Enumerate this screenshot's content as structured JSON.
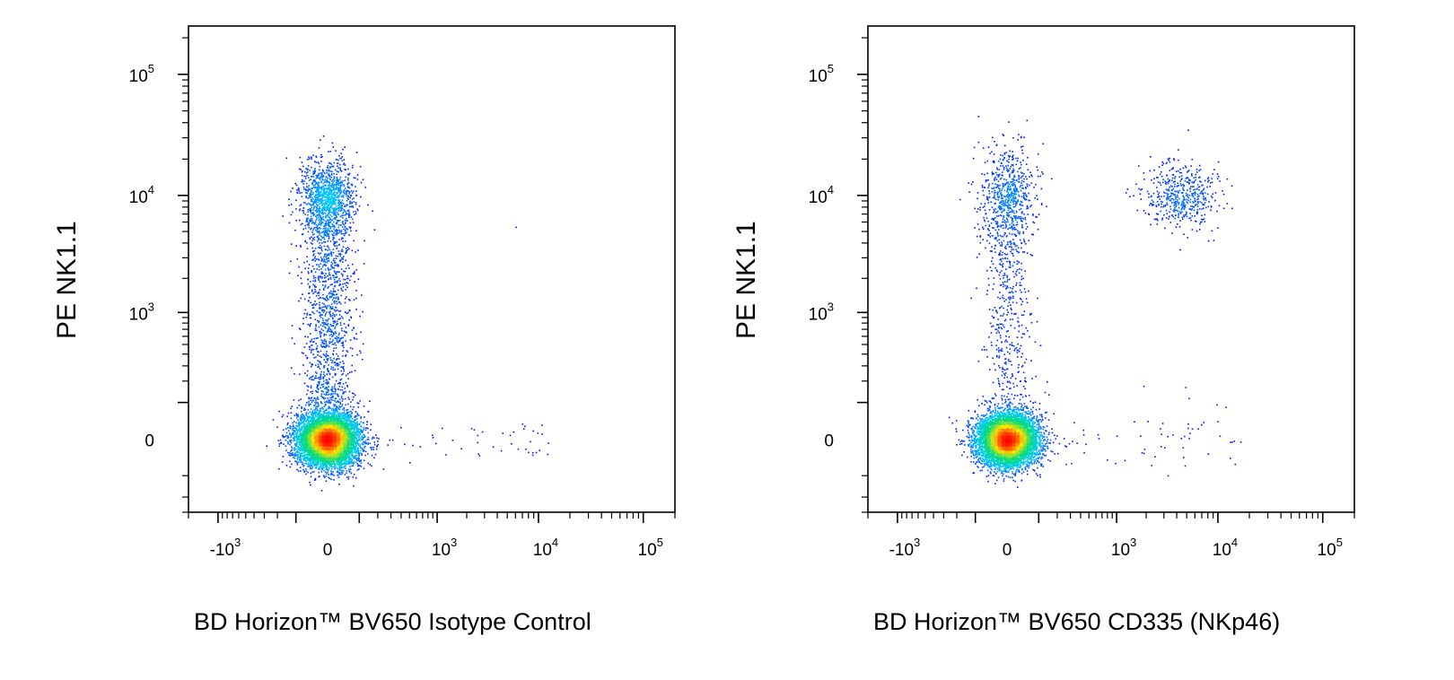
{
  "chart_data": [
    {
      "type": "scatter",
      "title": "",
      "xlabel": "BD Horizon™ BV650 Isotype Control",
      "ylabel": "PE NK1.1",
      "x_scale": "biexponential",
      "y_scale": "biexponential",
      "xlim": [
        -2000,
        200000
      ],
      "ylim": [
        -300,
        250000
      ],
      "x_ticks": [
        {
          "base": "-10",
          "exp": "3",
          "value": -1000
        },
        {
          "base": "0",
          "exp": "",
          "value": 0
        },
        {
          "base": "10",
          "exp": "3",
          "value": 1000
        },
        {
          "base": "10",
          "exp": "4",
          "value": 10000
        },
        {
          "base": "10",
          "exp": "5",
          "value": 100000
        }
      ],
      "y_ticks": [
        {
          "base": "0",
          "exp": "",
          "value": 0
        },
        {
          "base": "10",
          "exp": "3",
          "value": 1000
        },
        {
          "base": "10",
          "exp": "4",
          "value": 10000
        },
        {
          "base": "10",
          "exp": "5",
          "value": 100000
        }
      ],
      "color_scale": "density (blue-cyan-green-yellow-red)",
      "populations": [
        {
          "x_center": 0,
          "y_center": 0,
          "count": 7000
        },
        {
          "x_center": 0,
          "y_center": 8000,
          "count": 900
        },
        {
          "x_center": 0,
          "y_center": 1500,
          "count": 1400
        },
        {
          "x_center": 2500,
          "y_center": 0,
          "count": 45
        }
      ]
    },
    {
      "type": "scatter",
      "title": "",
      "xlabel": "BD Horizon™ BV650 CD335 (NKp46)",
      "ylabel": "PE NK1.1",
      "x_scale": "biexponential",
      "y_scale": "biexponential",
      "xlim": [
        -2000,
        200000
      ],
      "ylim": [
        -300,
        250000
      ],
      "x_ticks": [
        {
          "base": "-10",
          "exp": "3",
          "value": -1000
        },
        {
          "base": "0",
          "exp": "",
          "value": 0
        },
        {
          "base": "10",
          "exp": "3",
          "value": 1000
        },
        {
          "base": "10",
          "exp": "4",
          "value": 10000
        },
        {
          "base": "10",
          "exp": "5",
          "value": 100000
        }
      ],
      "y_ticks": [
        {
          "base": "0",
          "exp": "",
          "value": 0
        },
        {
          "base": "10",
          "exp": "3",
          "value": 1000
        },
        {
          "base": "10",
          "exp": "4",
          "value": 10000
        },
        {
          "base": "10",
          "exp": "5",
          "value": 100000
        }
      ],
      "color_scale": "density (blue-cyan-green-yellow-red)",
      "populations": [
        {
          "x_center": 0,
          "y_center": 0,
          "count": 6500
        },
        {
          "x_center": 0,
          "y_center": 2000,
          "count": 1600
        },
        {
          "x_center": 4500,
          "y_center": 10000,
          "count": 500
        },
        {
          "x_center": 3000,
          "y_center": 0,
          "count": 60
        }
      ]
    }
  ]
}
